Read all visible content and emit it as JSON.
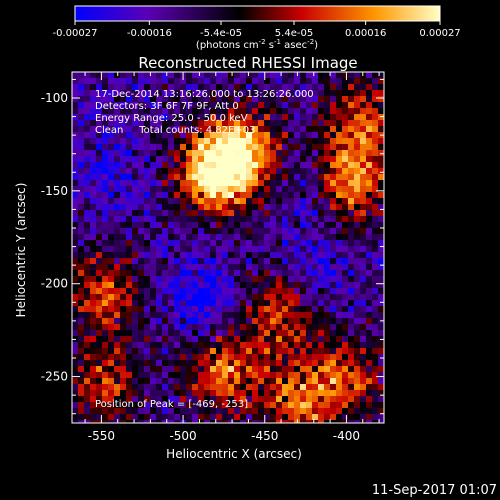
{
  "chart_data": {
    "type": "heatmap",
    "title": "Reconstructed RHESSI Image",
    "xlabel": "Heliocentric X (arcsec)",
    "ylabel": "Heliocentric Y (arcsec)",
    "xlim": [
      -568,
      -377
    ],
    "ylim": [
      -275,
      -86
    ],
    "x_ticks": [
      -550,
      -500,
      -450,
      -400
    ],
    "y_ticks": [
      -100,
      -150,
      -200,
      -250
    ],
    "colorbar": {
      "range": [
        -0.00027,
        0.00027
      ],
      "tick_labels": [
        "-0.00027",
        "-0.00016",
        "-5.4e-05",
        "5.4e-05",
        "0.00016",
        "0.00027"
      ],
      "tick_values": [
        -0.00027,
        -0.00016,
        -5.4e-05,
        5.4e-05,
        0.00016,
        0.00027
      ],
      "unit_prefix": "(photons cm",
      "unit_exp1": "-2",
      "unit_mid": " s",
      "unit_exp2": "-1",
      "unit_mid2": " asec",
      "unit_exp3": "-2",
      "unit_suffix": ")",
      "colormap": [
        "#0000ff",
        "#5a00b4",
        "#000000",
        "#c80000",
        "#ff9600",
        "#ffffc8"
      ]
    },
    "annotations": [
      "17-Dec-2014 13:16:26.000 to 13:26:26.000",
      "Detectors: 3F 6F 7F 9F, Att 0",
      "Energy Range: 25.0 - 50.0 keV",
      "Clean     Total counts: 4.82E+03"
    ],
    "peak_label": "Position of Peak = [-469, -253]",
    "peak": {
      "x": -469,
      "y": -253
    },
    "bright_sources": [
      {
        "x": -480,
        "y": -140,
        "level": 1.0
      },
      {
        "x": -462,
        "y": -128,
        "level": 0.7
      },
      {
        "x": -398,
        "y": -145,
        "level": 0.75
      },
      {
        "x": -390,
        "y": -112,
        "level": 0.55
      },
      {
        "x": -548,
        "y": -205,
        "level": 0.6
      },
      {
        "x": -548,
        "y": -255,
        "level": 0.5
      },
      {
        "x": -475,
        "y": -248,
        "level": 0.65
      },
      {
        "x": -440,
        "y": -215,
        "level": 0.55
      },
      {
        "x": -430,
        "y": -265,
        "level": 0.6
      },
      {
        "x": -400,
        "y": -250,
        "level": 0.55
      }
    ],
    "dark_sources": [
      {
        "x": -488,
        "y": -208,
        "level": 0.9
      },
      {
        "x": -420,
        "y": -195,
        "level": 0.6
      },
      {
        "x": -420,
        "y": -150,
        "level": 0.5
      },
      {
        "x": -545,
        "y": -140,
        "level": 0.45
      }
    ]
  },
  "timestamp": "11-Sep-2017 01:07"
}
